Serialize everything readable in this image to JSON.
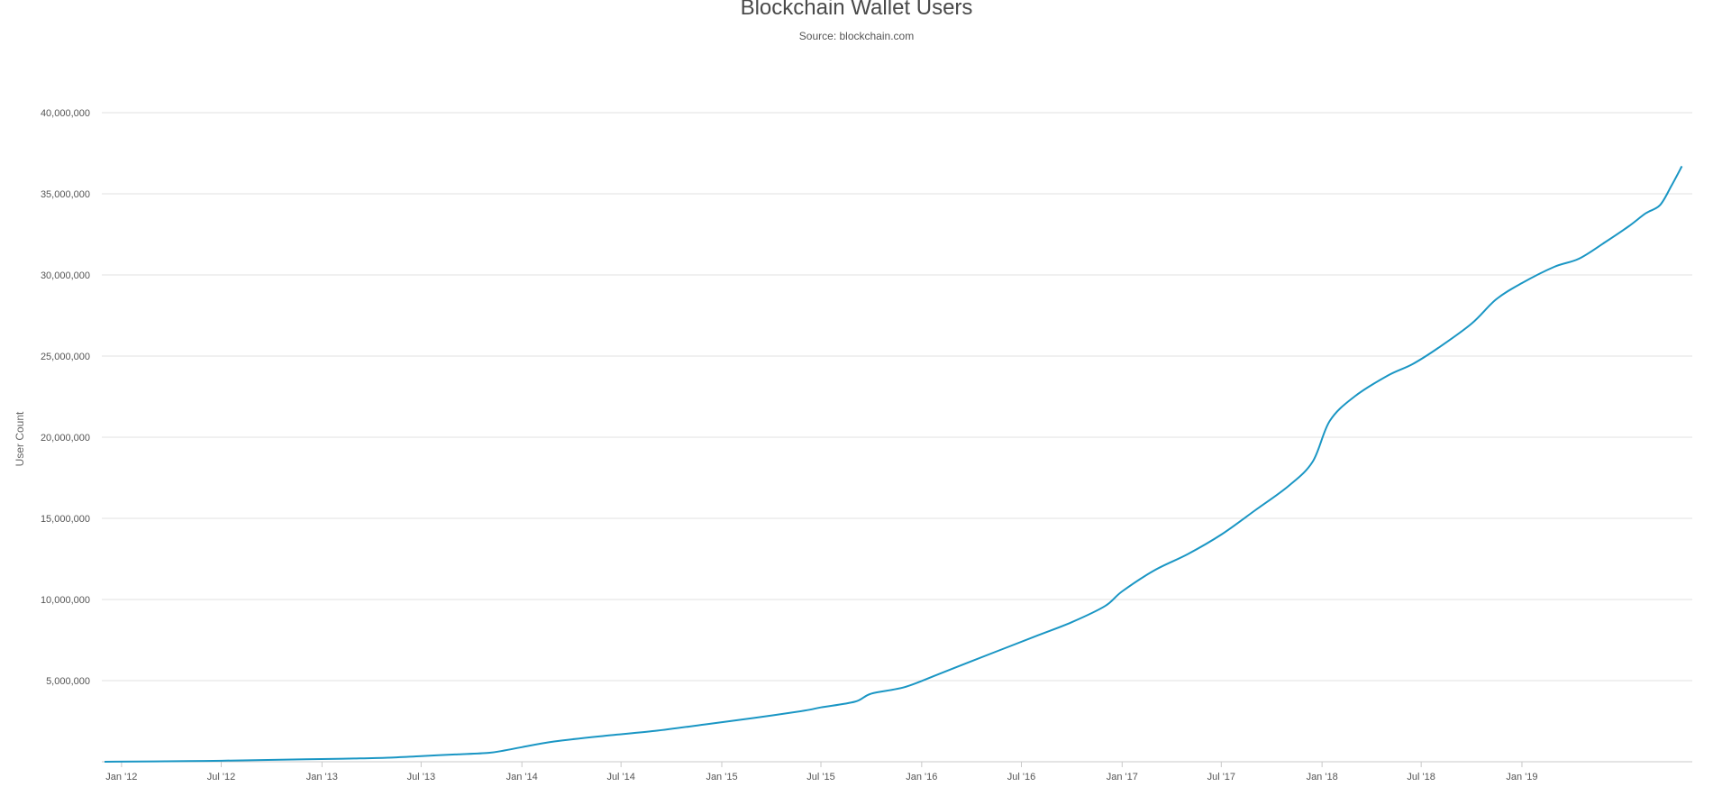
{
  "chart_data": {
    "type": "line",
    "title": "Blockchain Wallet Users",
    "subtitle": "Source: blockchain.com",
    "xlabel": "",
    "ylabel": "User Count",
    "ylim": [
      0,
      40000000
    ],
    "xlim": [
      "2011-11-26",
      "2019-11-08"
    ],
    "grid": true,
    "legend": "none",
    "line_color": "#1a96c4",
    "y_ticks": [
      {
        "value": 5000000,
        "label": "5,000,000"
      },
      {
        "value": 10000000,
        "label": "10,000,000"
      },
      {
        "value": 15000000,
        "label": "15,000,000"
      },
      {
        "value": 20000000,
        "label": "20,000,000"
      },
      {
        "value": 25000000,
        "label": "25,000,000"
      },
      {
        "value": 30000000,
        "label": "30,000,000"
      },
      {
        "value": 35000000,
        "label": "35,000,000"
      },
      {
        "value": 40000000,
        "label": "40,000,000"
      }
    ],
    "x_ticks": [
      {
        "date": "2012-01-01",
        "label": "Jan '12"
      },
      {
        "date": "2012-07-01",
        "label": "Jul '12"
      },
      {
        "date": "2013-01-01",
        "label": "Jan '13"
      },
      {
        "date": "2013-07-01",
        "label": "Jul '13"
      },
      {
        "date": "2014-01-01",
        "label": "Jan '14"
      },
      {
        "date": "2014-07-01",
        "label": "Jul '14"
      },
      {
        "date": "2015-01-01",
        "label": "Jan '15"
      },
      {
        "date": "2015-07-01",
        "label": "Jul '15"
      },
      {
        "date": "2016-01-01",
        "label": "Jan '16"
      },
      {
        "date": "2016-07-01",
        "label": "Jul '16"
      },
      {
        "date": "2017-01-01",
        "label": "Jan '17"
      },
      {
        "date": "2017-07-01",
        "label": "Jul '17"
      },
      {
        "date": "2018-01-01",
        "label": "Jan '18"
      },
      {
        "date": "2018-07-01",
        "label": "Jul '18"
      },
      {
        "date": "2019-01-01",
        "label": "Jan '19"
      }
    ],
    "series": [
      {
        "x": [
          "2011-12-01",
          "2012-03-01",
          "2012-06-01",
          "2012-09-01",
          "2012-12-01",
          "2013-03-01",
          "2013-05-01",
          "2013-07-01",
          "2013-09-01",
          "2013-11-01",
          "2013-12-01",
          "2014-01-01",
          "2014-03-01",
          "2014-06-01",
          "2014-09-01",
          "2014-12-01",
          "2015-03-01",
          "2015-06-01",
          "2015-07-01",
          "2015-09-01",
          "2015-10-01",
          "2015-12-01",
          "2016-02-01",
          "2016-04-01",
          "2016-06-01",
          "2016-08-01",
          "2016-10-01",
          "2016-12-01",
          "2017-01-01",
          "2017-03-01",
          "2017-05-01",
          "2017-07-01",
          "2017-09-01",
          "2017-11-01",
          "2017-12-15",
          "2018-01-15",
          "2018-03-01",
          "2018-05-01",
          "2018-06-15",
          "2018-08-01",
          "2018-10-01",
          "2018-11-15",
          "2019-01-01",
          "2019-03-01",
          "2019-04-15",
          "2019-06-01",
          "2019-07-15",
          "2019-08-15",
          "2019-09-10",
          "2019-10-01",
          "2019-10-20"
        ],
        "y": [
          0,
          20000,
          50000,
          100000,
          150000,
          200000,
          250000,
          350000,
          450000,
          550000,
          700000,
          900000,
          1250000,
          1600000,
          1900000,
          2300000,
          2700000,
          3150000,
          3350000,
          3700000,
          4200000,
          4600000,
          5400000,
          6200000,
          7000000,
          7800000,
          8600000,
          9600000,
          10500000,
          11800000,
          12800000,
          14000000,
          15500000,
          17000000,
          18500000,
          21000000,
          22500000,
          23800000,
          24500000,
          25500000,
          27000000,
          28500000,
          29500000,
          30500000,
          31000000,
          32000000,
          33000000,
          33800000,
          34300000,
          35500000,
          36700000
        ]
      }
    ]
  }
}
